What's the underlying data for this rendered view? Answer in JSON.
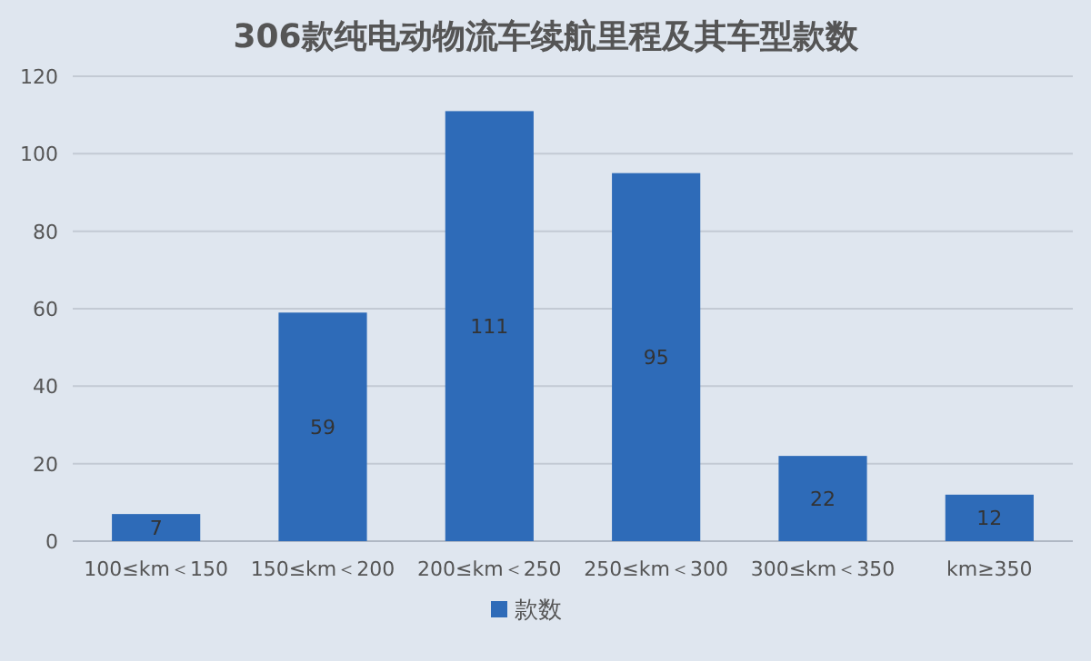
{
  "chart_data": {
    "type": "bar",
    "title": "306款纯电动物流车续航里程及其车型款数",
    "categories": [
      "100≤km＜150",
      "150≤km＜200",
      "200≤km＜250",
      "250≤km＜300",
      "300≤km＜350",
      "km≥350"
    ],
    "series": [
      {
        "name": "款数",
        "color": "#2e6bb8",
        "values": [
          7,
          59,
          111,
          95,
          22,
          12
        ]
      }
    ],
    "ylim": [
      0,
      120
    ],
    "yticks": [
      0,
      20,
      40,
      60,
      80,
      100,
      120
    ],
    "grid": "y",
    "legend": "bottom",
    "data_labels": true
  }
}
